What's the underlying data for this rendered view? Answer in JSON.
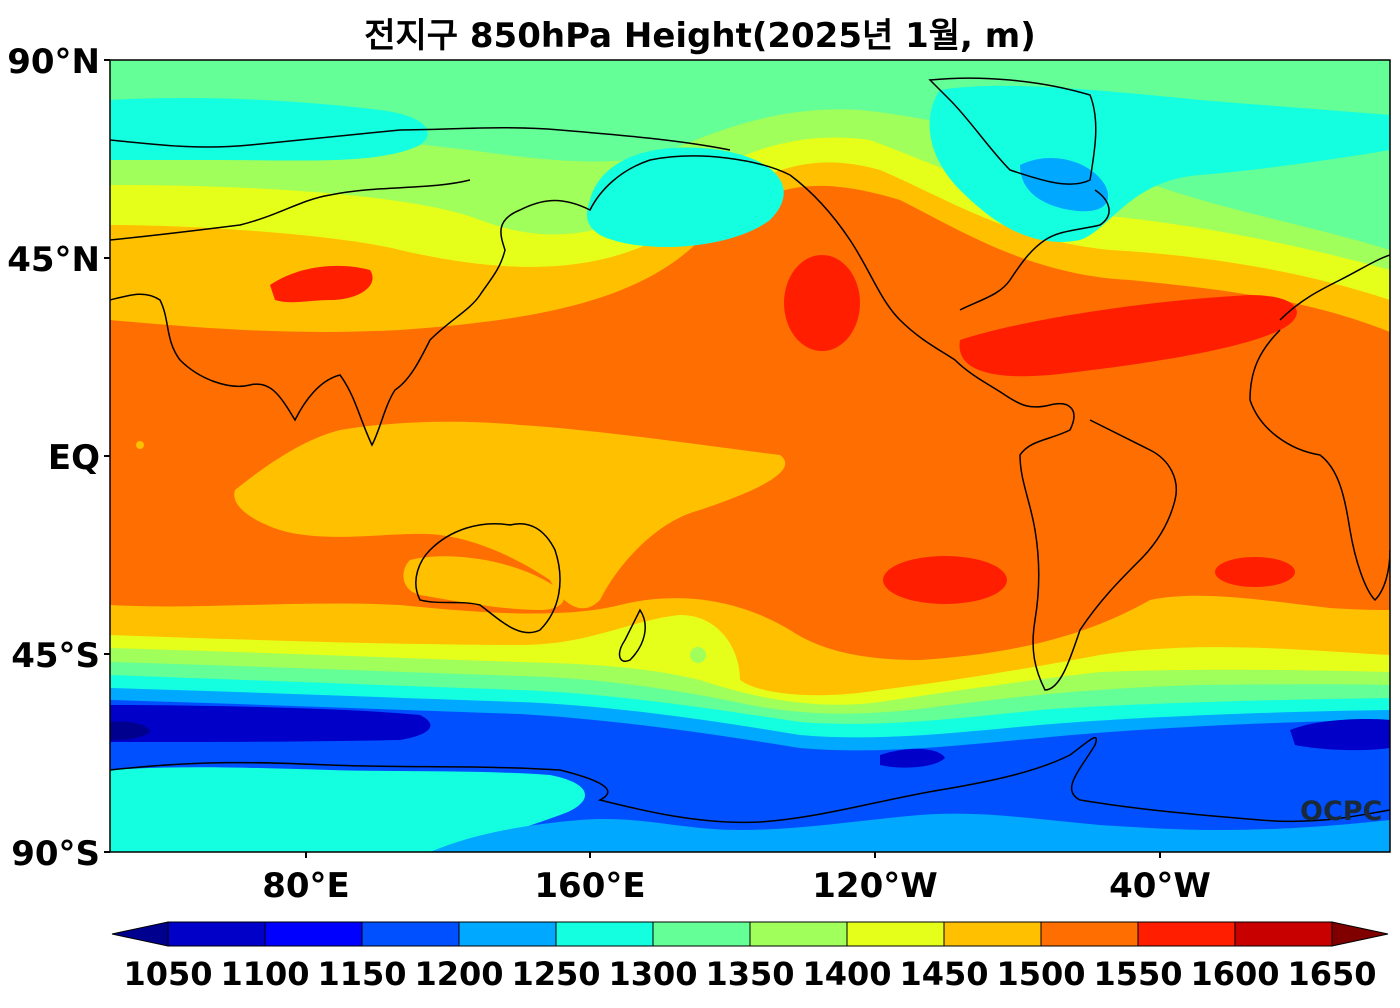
{
  "title": "전지구 850hPa Height(2025년 1월, m)",
  "watermark": "OCPC",
  "lat_ticks": [
    "90°N",
    "45°N",
    "EQ",
    "45°S",
    "90°S"
  ],
  "lon_ticks": [
    "80°E",
    "160°E",
    "120°W",
    "40°W"
  ],
  "colorbar": {
    "labels": [
      "1050",
      "1100",
      "1150",
      "1200",
      "1250",
      "1300",
      "1350",
      "1400",
      "1450",
      "1500",
      "1550",
      "1600",
      "1650"
    ],
    "colors": [
      "#00008f",
      "#0000c8",
      "#0000ff",
      "#0050ff",
      "#00a8ff",
      "#14ffe0",
      "#64ff96",
      "#a0ff5a",
      "#e6ff1a",
      "#ffc000",
      "#ff6e00",
      "#ff1e00",
      "#c80000",
      "#800000"
    ]
  }
}
